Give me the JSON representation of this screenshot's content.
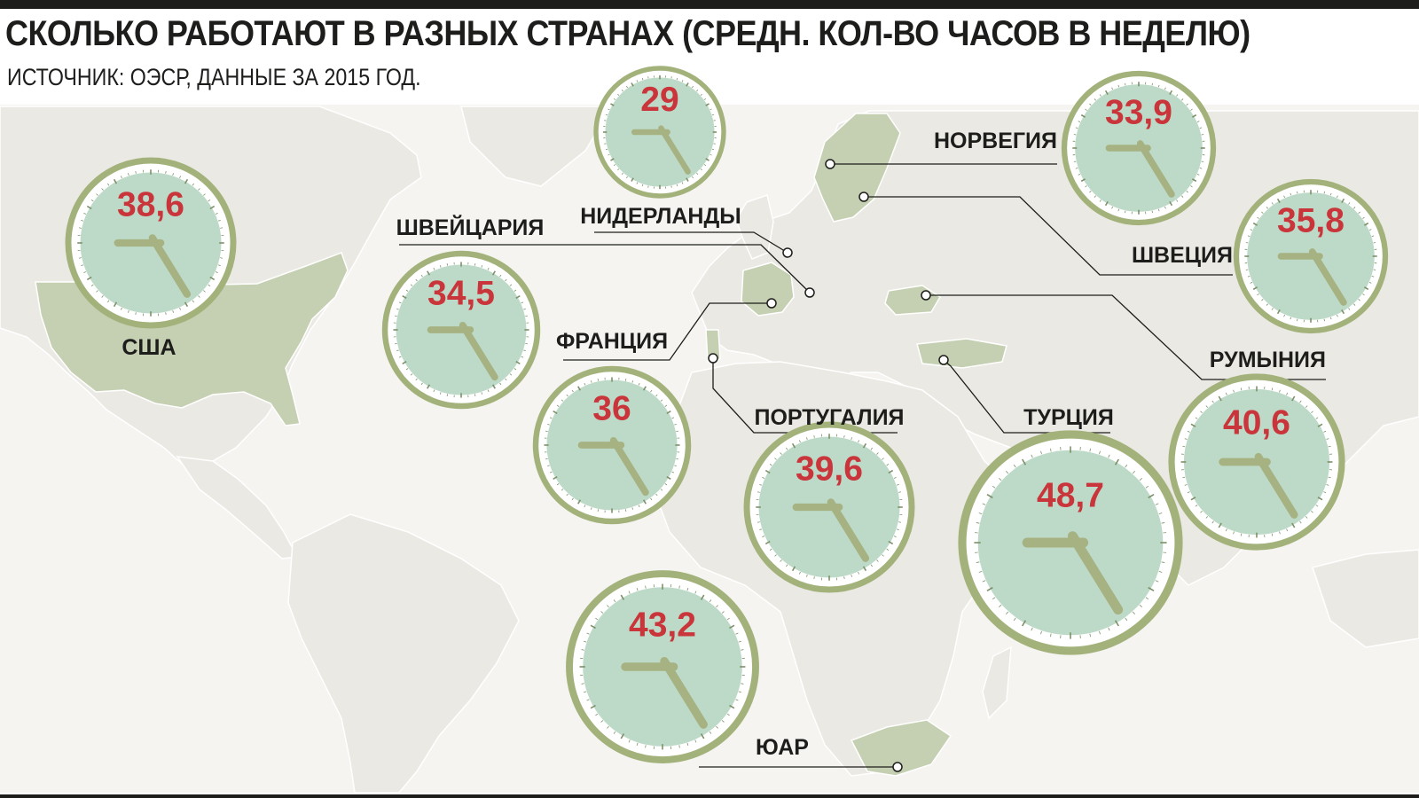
{
  "header": {
    "title": "СКОЛЬКО РАБОТАЮТ В РАЗНЫХ СТРАНАХ (СРЕДН. КОЛ-ВО ЧАСОВ В НЕДЕЛЮ)",
    "subtitle": "ИСТОЧНИК: ОЭСР, ДАННЫЕ ЗА 2015 ГОД."
  },
  "colors": {
    "clock_ring": "#a3b27b",
    "clock_face": "#bcdac7",
    "hands": "#a7b282",
    "value_text": "#c9353a",
    "highlighted_country": "#c5cfb2",
    "land": "#ebe9e3",
    "map_background": "#f5f4f1"
  },
  "chart_data": {
    "type": "map-bubble",
    "unit": "hours per week",
    "countries": [
      {
        "name": "США",
        "value": 38.6,
        "value_label": "38,6"
      },
      {
        "name": "ШВЕЙЦАРИЯ",
        "value": 34.5,
        "value_label": "34,5"
      },
      {
        "name": "НИДЕРЛАНДЫ",
        "value": 29,
        "value_label": "29"
      },
      {
        "name": "ФРАНЦИЯ",
        "value": 36,
        "value_label": "36"
      },
      {
        "name": "ПОРТУГАЛИЯ",
        "value": 39.6,
        "value_label": "39,6"
      },
      {
        "name": "НОРВЕГИЯ",
        "value": 33.9,
        "value_label": "33,9"
      },
      {
        "name": "ШВЕЦИЯ",
        "value": 35.8,
        "value_label": "35,8"
      },
      {
        "name": "РУМЫНИЯ",
        "value": 40.6,
        "value_label": "40,6"
      },
      {
        "name": "ТУРЦИЯ",
        "value": 48.7,
        "value_label": "48,7"
      },
      {
        "name": "ЮАР",
        "value": 43.2,
        "value_label": "43,2"
      }
    ]
  }
}
